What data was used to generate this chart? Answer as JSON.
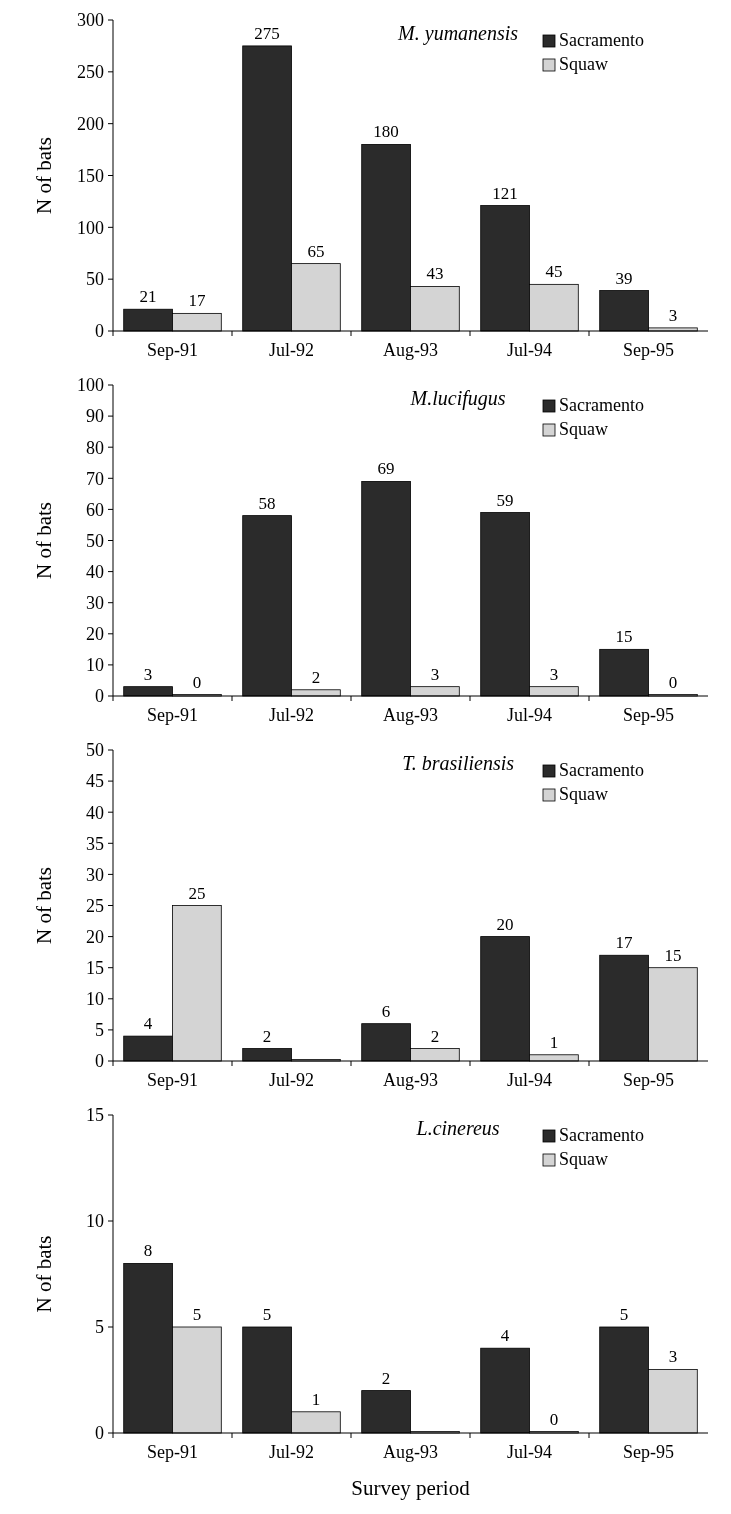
{
  "chart_data": [
    {
      "type": "bar",
      "title": "M. yumanensis",
      "ylabel": "N of bats",
      "categories": [
        "Sep-91",
        "Jul-92",
        "Aug-93",
        "Jul-94",
        "Sep-95"
      ],
      "ylim": [
        0,
        300
      ],
      "yticks": [
        0,
        50,
        100,
        150,
        200,
        250,
        300
      ],
      "legend": "top right",
      "grid": false,
      "series": [
        {
          "name": "Sacramento",
          "color": "#2b2b2b",
          "values": [
            21,
            275,
            180,
            121,
            39
          ],
          "value_labels": [
            "21",
            "275",
            "180",
            "121",
            "39"
          ]
        },
        {
          "name": "Squaw",
          "color": "#d4d4d4",
          "values": [
            17,
            65,
            43,
            45,
            3
          ],
          "value_labels": [
            "17",
            "65",
            "43",
            "45",
            "3"
          ]
        }
      ]
    },
    {
      "type": "bar",
      "title": "M.lucifugus",
      "ylabel": "N of bats",
      "categories": [
        "Sep-91",
        "Jul-92",
        "Aug-93",
        "Jul-94",
        "Sep-95"
      ],
      "ylim": [
        0,
        100
      ],
      "yticks": [
        0,
        10,
        20,
        30,
        40,
        50,
        60,
        70,
        80,
        90,
        100
      ],
      "legend": "top right",
      "grid": false,
      "series": [
        {
          "name": "Sacramento",
          "color": "#2b2b2b",
          "values": [
            3,
            58,
            69,
            59,
            15
          ],
          "value_labels": [
            "3",
            "58",
            "69",
            "59",
            "15"
          ]
        },
        {
          "name": "Squaw",
          "color": "#d4d4d4",
          "values": [
            0,
            2,
            3,
            3,
            0
          ],
          "value_labels": [
            "0",
            "2",
            "3",
            "3",
            "0"
          ]
        }
      ]
    },
    {
      "type": "bar",
      "title": "T. brasiliensis",
      "ylabel": "N of bats",
      "categories": [
        "Sep-91",
        "Jul-92",
        "Aug-93",
        "Jul-94",
        "Sep-95"
      ],
      "ylim": [
        0,
        50
      ],
      "yticks": [
        0,
        5,
        10,
        15,
        20,
        25,
        30,
        35,
        40,
        45,
        50
      ],
      "legend": "top right",
      "grid": false,
      "series": [
        {
          "name": "Sacramento",
          "color": "#2b2b2b",
          "values": [
            4,
            2,
            6,
            20,
            17
          ],
          "value_labels": [
            "4",
            "2",
            "6",
            "20",
            "17"
          ]
        },
        {
          "name": "Squaw",
          "color": "#d4d4d4",
          "values": [
            25,
            0,
            2,
            1,
            15
          ],
          "value_labels": [
            "25",
            null,
            "2",
            "1",
            "15"
          ]
        }
      ]
    },
    {
      "type": "bar",
      "title": "L.cinereus",
      "ylabel": "N of bats",
      "xlabel": "Survey period",
      "categories": [
        "Sep-91",
        "Jul-92",
        "Aug-93",
        "Jul-94",
        "Sep-95"
      ],
      "ylim": [
        0,
        15
      ],
      "yticks": [
        0,
        5,
        10,
        15
      ],
      "legend": "top right",
      "grid": false,
      "series": [
        {
          "name": "Sacramento",
          "color": "#2b2b2b",
          "values": [
            8,
            5,
            2,
            4,
            5
          ],
          "value_labels": [
            "8",
            "5",
            "2",
            "4",
            "5"
          ]
        },
        {
          "name": "Squaw",
          "color": "#d4d4d4",
          "values": [
            5,
            1,
            0,
            0,
            3
          ],
          "value_labels": [
            "5",
            "1",
            null,
            "0",
            "3"
          ]
        }
      ]
    }
  ]
}
